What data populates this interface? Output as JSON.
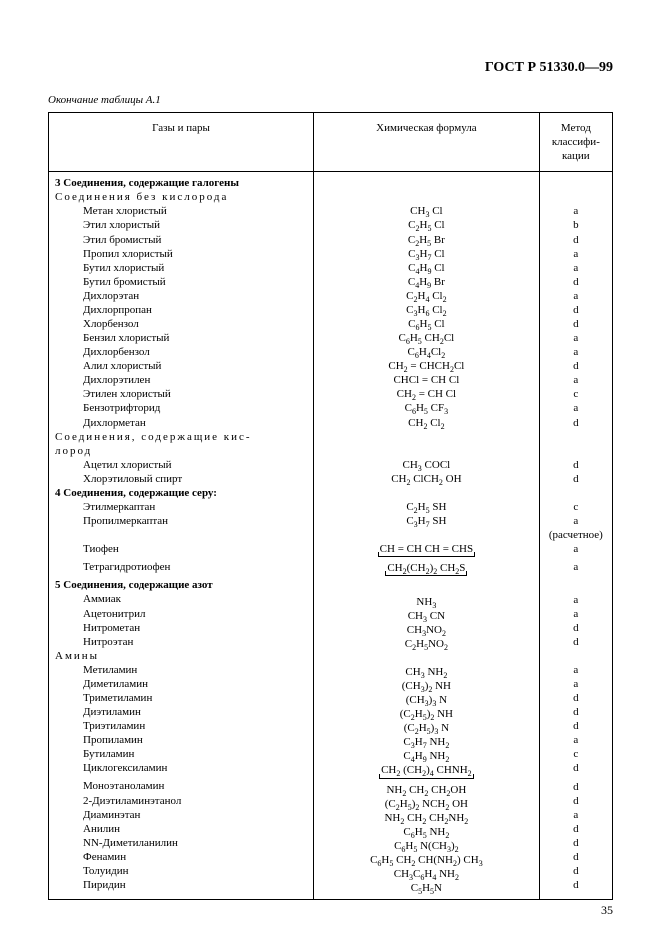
{
  "doc_id": "ГОСТ Р 51330.0—99",
  "table_caption": "Окончание таблицы А.1",
  "page_number": "35",
  "headers": {
    "col1": "Газы и пары",
    "col2": "Химическая формула",
    "col3": "Метод классифи-кации"
  },
  "rows": [
    {
      "type": "section",
      "name": "3 Соединения, содержащие галогены"
    },
    {
      "type": "subsection",
      "name": "Соединения без кислорода"
    },
    {
      "type": "item",
      "name": "Метан хлористый",
      "formula_html": "CH<sub>3</sub> Cl",
      "method": "a"
    },
    {
      "type": "item",
      "name": "Этил хлористый",
      "formula_html": "C<sub>2</sub>H<sub>5</sub> Cl",
      "method": "b"
    },
    {
      "type": "item",
      "name": "Этил бромистый",
      "formula_html": "C<sub>2</sub>H<sub>5</sub> Br",
      "method": "d"
    },
    {
      "type": "item",
      "name": "Пропил хлористый",
      "formula_html": "C<sub>3</sub>H<sub>7</sub> Cl",
      "method": "a"
    },
    {
      "type": "item",
      "name": "Бутил хлористый",
      "formula_html": "C<sub>4</sub>H<sub>9</sub> Cl",
      "method": "a"
    },
    {
      "type": "item",
      "name": "Бутил бромистый",
      "formula_html": "C<sub>4</sub>H<sub>9</sub> Br",
      "method": "d"
    },
    {
      "type": "item",
      "name": "Дихлорэтан",
      "formula_html": "C<sub>2</sub>H<sub>4</sub> Cl<sub>2</sub>",
      "method": "a"
    },
    {
      "type": "item",
      "name": "Дихлорпропан",
      "formula_html": "C<sub>3</sub>H<sub>6</sub> Cl<sub>2</sub>",
      "method": "d"
    },
    {
      "type": "item",
      "name": "Хлорбензол",
      "formula_html": "C<sub>6</sub>H<sub>5</sub> Cl",
      "method": "d"
    },
    {
      "type": "item",
      "name": "Бензил хлористый",
      "formula_html": "C<sub>6</sub>H<sub>5</sub> CH<sub>2</sub>Cl",
      "method": "a"
    },
    {
      "type": "item",
      "name": "Дихлорбензол",
      "formula_html": "C<sub>6</sub>H<sub>4</sub>Cl<sub>2</sub>",
      "method": "a"
    },
    {
      "type": "item",
      "name": "Алил хлористый",
      "formula_html": "CH<sub>2</sub> = CHCH<sub>2</sub>Cl",
      "method": "d"
    },
    {
      "type": "item",
      "name": "Дихлорэтилен",
      "formula_html": "CHCl = CH Cl",
      "method": "a"
    },
    {
      "type": "item",
      "name": "Этилен хлористый",
      "formula_html": "CH<sub>2</sub> = CH Cl",
      "method": "c"
    },
    {
      "type": "item",
      "name": "Бензотрифторид",
      "formula_html": "C<sub>6</sub>H<sub>5</sub> CF<sub>3</sub>",
      "method": "a"
    },
    {
      "type": "item",
      "name": "Дихлорметан",
      "formula_html": "CH<sub>2</sub> Cl<sub>2</sub>",
      "method": "d"
    },
    {
      "type": "subsection",
      "name": "Соединения, содержащие кис-"
    },
    {
      "type": "subsection_cont",
      "name": "лород"
    },
    {
      "type": "item",
      "name": "Ацетил хлористый",
      "formula_html": "CH<sub>3</sub> COCl",
      "method": "d"
    },
    {
      "type": "item",
      "name": "Хлорэтиловый спирт",
      "formula_html": "CH<sub>2</sub> ClCH<sub>2</sub> OH",
      "method": "d"
    },
    {
      "type": "section",
      "name": "4 Соединения, содержащие серу:"
    },
    {
      "type": "item",
      "name": "Этилмеркаптан",
      "formula_html": "C<sub>2</sub>H<sub>5</sub> SH",
      "method": "c"
    },
    {
      "type": "item",
      "name": "Пропилмеркаптан",
      "formula_html": "C<sub>3</sub>H<sub>7</sub> SH",
      "method": "a"
    },
    {
      "type": "note_right",
      "method": "(расчетное)"
    },
    {
      "type": "item",
      "name": "Тиофен",
      "formula_html": "CH = CH CH = CHS",
      "bracket": true,
      "method": "a"
    },
    {
      "type": "spacer"
    },
    {
      "type": "item",
      "name": "Тетрагидротиофен",
      "formula_html": "CH<sub>2</sub>(CH<sub>2</sub>)<sub>2</sub>  CH<sub>2</sub>S",
      "bracket": true,
      "method": "a"
    },
    {
      "type": "spacer"
    },
    {
      "type": "section",
      "name": "5 Соединения, содержащие азот"
    },
    {
      "type": "item",
      "name": "Аммиак",
      "formula_html": "NH<sub>3</sub>",
      "method": "a"
    },
    {
      "type": "item",
      "name": "Ацетонитрил",
      "formula_html": "CH<sub>3</sub> CN",
      "method": "a"
    },
    {
      "type": "item",
      "name": "Нитрометан",
      "formula_html": "CH<sub>3</sub>NO<sub>2</sub>",
      "method": "d"
    },
    {
      "type": "item",
      "name": "Нитроэтан",
      "formula_html": "C<sub>2</sub>H<sub>5</sub>NO<sub>2</sub>",
      "method": "d"
    },
    {
      "type": "subsection",
      "name": "Амины"
    },
    {
      "type": "item",
      "name": "Метиламин",
      "formula_html": "CH<sub>3</sub> NH<sub>2</sub>",
      "method": "a"
    },
    {
      "type": "item",
      "name": "Диметиламин",
      "formula_html": "(CH<sub>3</sub>)<sub>2</sub>  NH",
      "method": "a"
    },
    {
      "type": "item",
      "name": "Триметиламин",
      "formula_html": "(CH<sub>3</sub>)<sub>3</sub> N",
      "method": "d"
    },
    {
      "type": "item",
      "name": "Диэтиламин",
      "formula_html": "(C<sub>2</sub>H<sub>5</sub>)<sub>2</sub>  NH",
      "method": "d"
    },
    {
      "type": "item",
      "name": "Триэтиламин",
      "formula_html": "(C<sub>2</sub>H<sub>5</sub>)<sub>3</sub>  N",
      "method": "d"
    },
    {
      "type": "item",
      "name": "Пропиламин",
      "formula_html": "C<sub>3</sub>H<sub>7</sub>  NH<sub>2</sub>",
      "method": "a"
    },
    {
      "type": "item",
      "name": "Бутиламин",
      "formula_html": "C<sub>4</sub>H<sub>9</sub>  NH<sub>2</sub>",
      "method": "c"
    },
    {
      "type": "item",
      "name": "Циклогексиламин",
      "formula_html": "CH<sub>2</sub>  (CH<sub>2</sub>)<sub>4</sub>  CHNH<sub>2</sub>",
      "bracket": true,
      "method": "d"
    },
    {
      "type": "spacer"
    },
    {
      "type": "item",
      "name": "Моноэтаноламин",
      "formula_html": "NH<sub>2</sub> CH<sub>2</sub> CH<sub>2</sub>OH",
      "method": "d"
    },
    {
      "type": "item",
      "name": "2-Диэтиламинэтанол",
      "formula_html": "(C<sub>2</sub>H<sub>5</sub>)<sub>2</sub> NCH<sub>2</sub> OH",
      "method": "d"
    },
    {
      "type": "item",
      "name": "Диаминэтан",
      "formula_html": "NH<sub>2</sub> CH<sub>2</sub> CH<sub>2</sub>NH<sub>2</sub>",
      "method": "a"
    },
    {
      "type": "item",
      "name": "Анилин",
      "formula_html": "C<sub>6</sub>H<sub>5</sub>  NH<sub>2</sub>",
      "method": "d"
    },
    {
      "type": "item",
      "name": "NN-Диметиланилин",
      "formula_html": "C<sub>6</sub>H<sub>5</sub> N(CH<sub>3</sub>)<sub>2</sub>",
      "method": "d"
    },
    {
      "type": "item",
      "name": "Фенамин",
      "formula_html": "C<sub>6</sub>H<sub>5</sub>  CH<sub>2</sub>  CH(NH<sub>2</sub>)  CH<sub>3</sub>",
      "method": "d"
    },
    {
      "type": "item",
      "name": "Толуидин",
      "formula_html": "CH<sub>3</sub>C<sub>6</sub>H<sub>4</sub>  NH<sub>2</sub>",
      "method": "d"
    },
    {
      "type": "item",
      "name": "Пиридин",
      "formula_html": "C<sub>5</sub>H<sub>5</sub>N",
      "method": "d"
    }
  ]
}
